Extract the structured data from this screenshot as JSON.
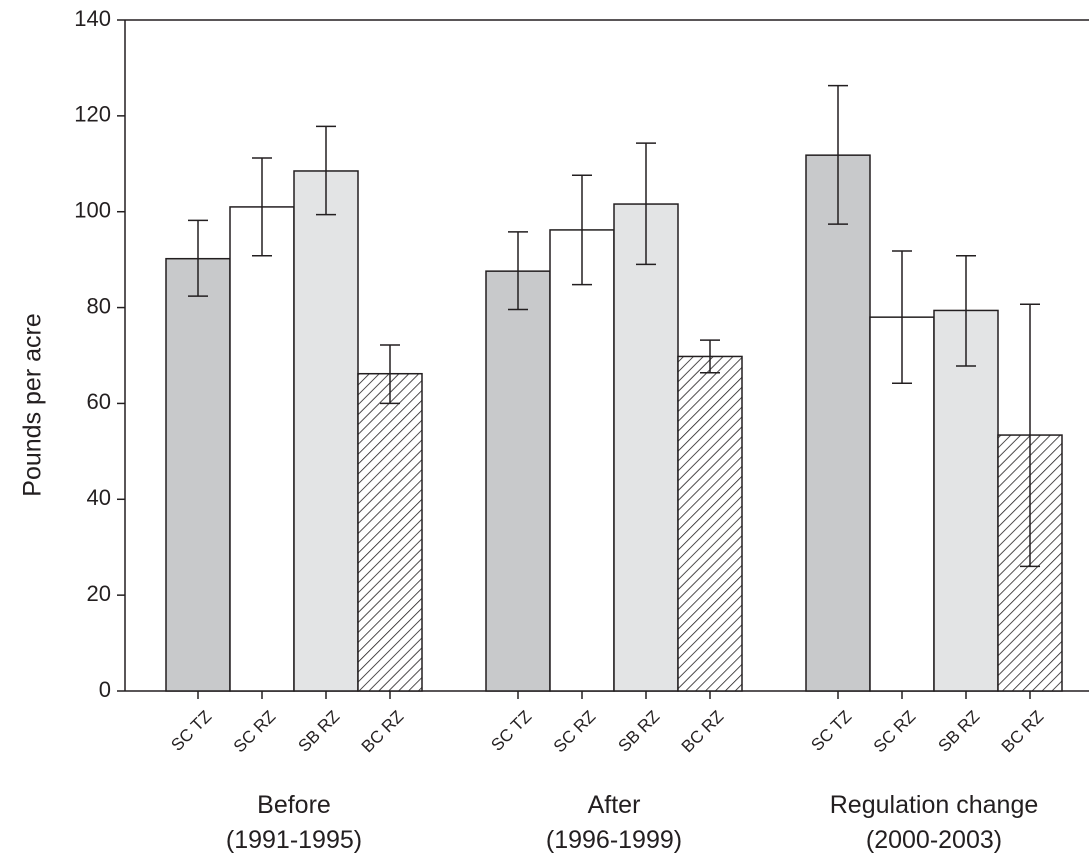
{
  "chart_data": {
    "type": "bar",
    "title": "",
    "ylabel": "Pounds per acre",
    "xlabel": "",
    "ylim": [
      0,
      140
    ],
    "yticks": [
      0,
      20,
      40,
      60,
      80,
      100,
      120,
      140
    ],
    "grid": false,
    "legend": "none",
    "groups": [
      {
        "label_line1": "Before",
        "label_line2": "(1991-1995)"
      },
      {
        "label_line1": "After",
        "label_line2": "(1996-1999)"
      },
      {
        "label_line1": "Regulation change",
        "label_line2": "(2000-2003)"
      }
    ],
    "series": [
      {
        "category": "SC TZ",
        "fill": "#c8c9cb",
        "pattern": "solid",
        "values": [
          90.2,
          87.6,
          111.8
        ],
        "err_low": [
          82.4,
          79.6,
          97.4
        ],
        "err_high": [
          98.2,
          95.8,
          126.3
        ]
      },
      {
        "category": "SC RZ",
        "fill": "#ffffff",
        "pattern": "solid",
        "values": [
          101.0,
          96.2,
          78.0
        ],
        "err_low": [
          90.8,
          84.8,
          64.2
        ],
        "err_high": [
          111.2,
          107.6,
          91.8
        ]
      },
      {
        "category": "SB RZ",
        "fill": "#e3e4e5",
        "pattern": "solid",
        "values": [
          108.5,
          101.6,
          79.4
        ],
        "err_low": [
          99.4,
          89.0,
          67.8
        ],
        "err_high": [
          117.8,
          114.3,
          90.8
        ]
      },
      {
        "category": "BC RZ",
        "fill": "#ffffff",
        "pattern": "diagonal-hatch",
        "values": [
          66.2,
          69.8,
          53.4
        ],
        "err_low": [
          60.0,
          66.4,
          26.0
        ],
        "err_high": [
          72.2,
          73.2,
          80.7
        ]
      }
    ],
    "colors": {
      "axis": "#231f20",
      "bar_stroke": "#231f20"
    }
  }
}
